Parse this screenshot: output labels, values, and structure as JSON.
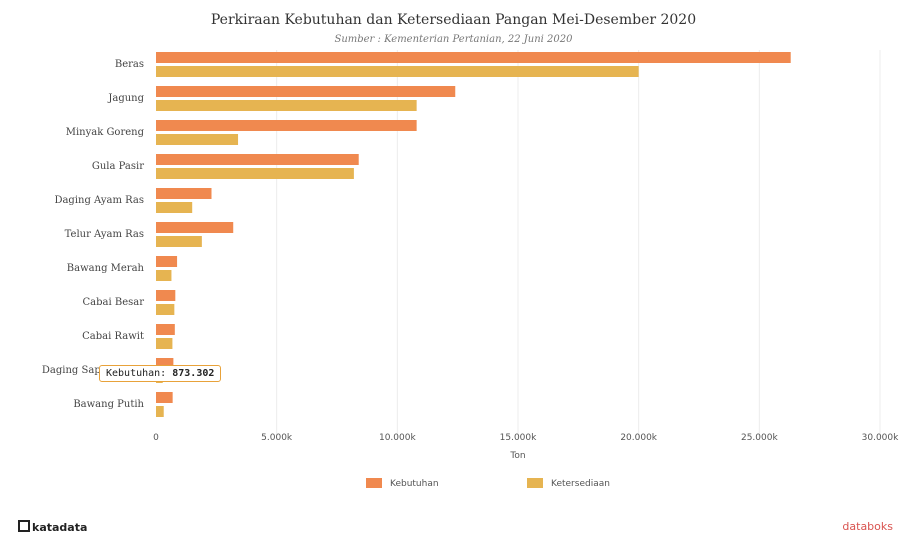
{
  "header": {
    "title": "Perkiraan Kebutuhan dan Ketersediaan Pangan Mei-Desember 2020",
    "subtitle": "Sumber : Kementerian Pertanian, 22 Juni 2020"
  },
  "branding": {
    "left": "katadata",
    "right": "databoks"
  },
  "tooltip": {
    "label": "Kebutuhan:",
    "value": "873.302"
  },
  "colors": {
    "kebutuhan": "#f0894f",
    "ketersediaan": "#e6b451",
    "grid": "#ececec"
  },
  "chart_data": {
    "type": "bar",
    "orientation": "horizontal",
    "title": "Perkiraan Kebutuhan dan Ketersediaan Pangan Mei-Desember 2020",
    "subtitle": "Sumber : Kementerian Pertanian, 22 Juni 2020",
    "xlabel": "Ton",
    "ylabel": "",
    "categories": [
      "Beras",
      "Jagung",
      "Minyak Goreng",
      "Gula Pasir",
      "Daging Ayam Ras",
      "Telur Ayam Ras",
      "Bawang Merah",
      "Cabai Besar",
      "Cabai Rawit",
      "Daging Sapi/Kerbau",
      "Bawang Putih"
    ],
    "series": [
      {
        "name": "Kebutuhan",
        "values": [
          26300000,
          12400000,
          10800000,
          8400000,
          2300000,
          3200000,
          873302,
          800000,
          780000,
          720000,
          690000
        ]
      },
      {
        "name": "Ketersediaan",
        "values": [
          20000000,
          10800000,
          3400000,
          8200000,
          1500000,
          1900000,
          640000,
          760000,
          680000,
          280000,
          320000
        ]
      }
    ],
    "xlim": [
      0,
      30000000
    ],
    "xticks": [
      0,
      5000000,
      10000000,
      15000000,
      20000000,
      25000000,
      30000000
    ],
    "xtick_labels": [
      "0",
      "5.000k",
      "10.000k",
      "15.000k",
      "20.000k",
      "25.000k",
      "30.000k"
    ],
    "grid": true,
    "legend_position": "bottom"
  }
}
